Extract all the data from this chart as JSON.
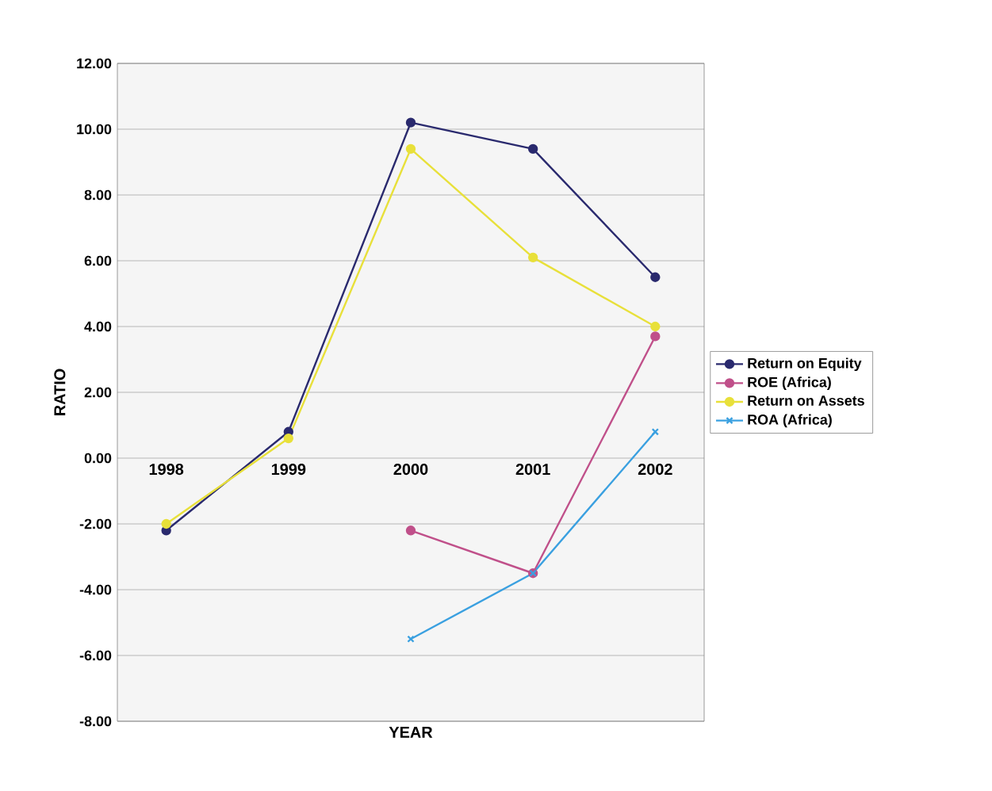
{
  "chart_data": {
    "type": "line",
    "xlabel": "YEAR",
    "ylabel": "RATIO",
    "categories": [
      "1998",
      "1999",
      "2000",
      "2001",
      "2002"
    ],
    "series": [
      {
        "name": "Return on Equity",
        "color": "#2a2a6e",
        "values": [
          -2.2,
          0.8,
          10.2,
          9.4,
          5.5
        ],
        "marker": "circle"
      },
      {
        "name": "ROE (Africa)",
        "color": "#c0508a",
        "values": [
          null,
          null,
          -2.2,
          -3.5,
          3.7
        ],
        "marker": "circle"
      },
      {
        "name": "Return on Assets",
        "color": "#e8e03a",
        "values": [
          -2.0,
          0.6,
          9.4,
          6.1,
          4.0
        ],
        "marker": "circle"
      },
      {
        "name": "ROA (Africa)",
        "color": "#3aa0e0",
        "values": [
          null,
          null,
          -5.5,
          -3.5,
          0.8
        ],
        "marker": "cross"
      }
    ],
    "ylim": [
      -8,
      12
    ],
    "yticks": [
      {
        "value": -8,
        "label": "-8.00"
      },
      {
        "value": -6,
        "label": "-6.00"
      },
      {
        "value": -4,
        "label": "-4.00"
      },
      {
        "value": -2,
        "label": "-2.00"
      },
      {
        "value": 0,
        "label": "0.00"
      },
      {
        "value": 2,
        "label": "2.00"
      },
      {
        "value": 4,
        "label": "4.00"
      },
      {
        "value": 6,
        "label": "6.00"
      },
      {
        "value": 8,
        "label": "8.00"
      },
      {
        "value": 10,
        "label": "10.00"
      },
      {
        "value": 12,
        "label": "12.00"
      }
    ],
    "grid": "y",
    "legend": "right",
    "line_style": "solid"
  }
}
